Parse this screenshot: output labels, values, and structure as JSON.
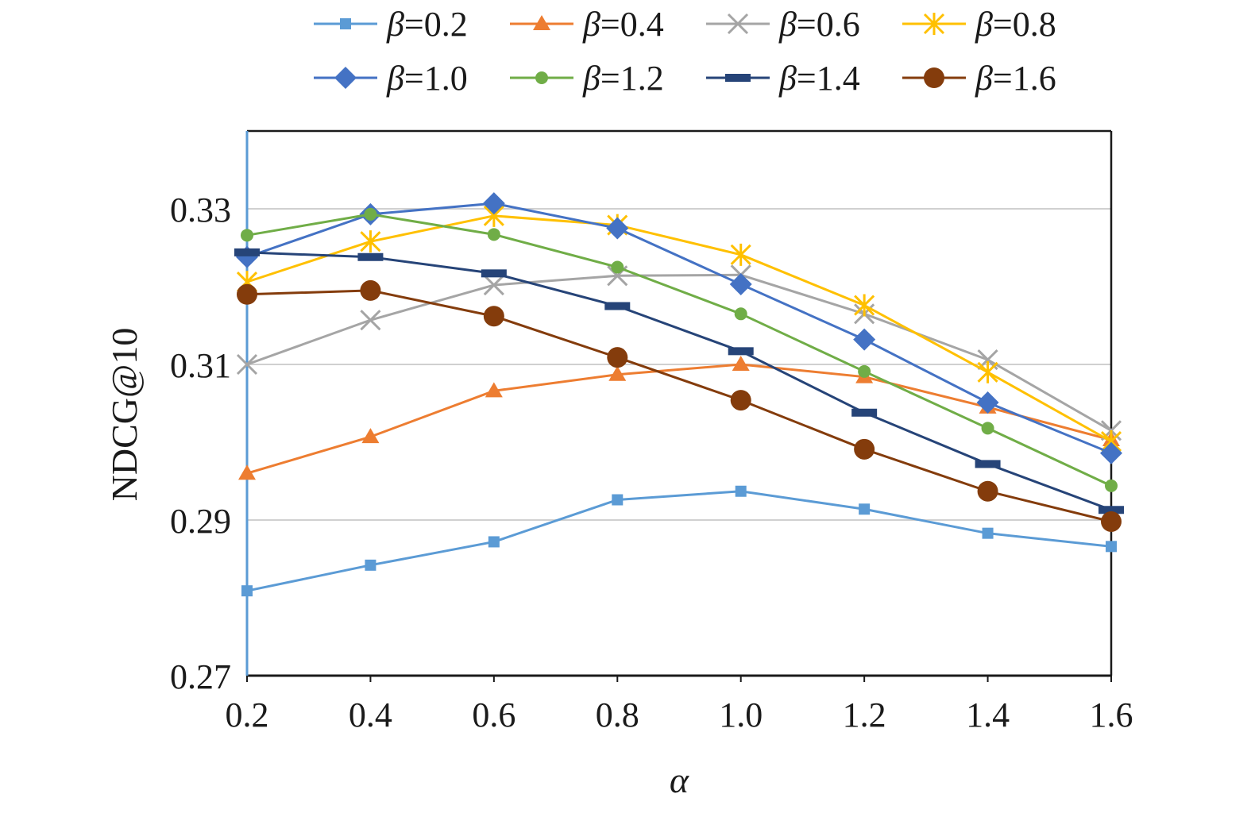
{
  "chart_data": {
    "type": "line",
    "title": "",
    "xlabel": "α",
    "ylabel": "NDCG@10",
    "x": [
      0.2,
      0.4,
      0.6,
      0.8,
      1.0,
      1.2,
      1.4,
      1.6
    ],
    "x_tick_labels": [
      "0.2",
      "0.4",
      "0.6",
      "0.8",
      "1.0",
      "1.2",
      "1.4",
      "1.6"
    ],
    "ylim": [
      0.27,
      0.34
    ],
    "y_ticks": [
      0.27,
      0.29,
      0.31,
      0.33
    ],
    "y_tick_labels": [
      "0.27",
      "0.29",
      "0.31",
      "0.33"
    ],
    "grid": "horizontal",
    "legend_position": "top",
    "series": [
      {
        "name": "β=0.2",
        "symbol": "β",
        "value_label": "=0.2",
        "color": "#5b9bd5",
        "marker": "square",
        "values": [
          0.2809,
          0.2842,
          0.2872,
          0.2926,
          0.2937,
          0.2914,
          0.2883,
          0.2866
        ]
      },
      {
        "name": "β=0.4",
        "symbol": "β",
        "value_label": "=0.4",
        "color": "#ed7d31",
        "marker": "triangle",
        "values": [
          0.296,
          0.3007,
          0.3066,
          0.3087,
          0.31,
          0.3084,
          0.3045,
          0.3003
        ]
      },
      {
        "name": "β=0.6",
        "symbol": "β",
        "value_label": "=0.6",
        "color": "#a5a5a5",
        "marker": "x",
        "values": [
          0.31,
          0.3157,
          0.3202,
          0.3214,
          0.3215,
          0.3165,
          0.3106,
          0.3015
        ]
      },
      {
        "name": "β=0.8",
        "symbol": "β",
        "value_label": "=0.8",
        "color": "#ffc000",
        "marker": "star",
        "values": [
          0.3206,
          0.3258,
          0.3291,
          0.3279,
          0.3241,
          0.3176,
          0.309,
          0.3001
        ]
      },
      {
        "name": "β=1.0",
        "symbol": "β",
        "value_label": "=1.0",
        "color": "#4472c4",
        "marker": "diamond",
        "values": [
          0.3238,
          0.3293,
          0.3307,
          0.3275,
          0.3203,
          0.3132,
          0.3051,
          0.2986
        ]
      },
      {
        "name": "β=1.2",
        "symbol": "β",
        "value_label": "=1.2",
        "color": "#70ad47",
        "marker": "circle",
        "values": [
          0.3266,
          0.3293,
          0.3267,
          0.3225,
          0.3165,
          0.3091,
          0.3018,
          0.2944
        ]
      },
      {
        "name": "β=1.4",
        "symbol": "β",
        "value_label": "=1.4",
        "color": "#264478",
        "marker": "dash",
        "values": [
          0.3244,
          0.3238,
          0.3217,
          0.3175,
          0.3117,
          0.3038,
          0.2972,
          0.2913
        ]
      },
      {
        "name": "β=1.6",
        "symbol": "β",
        "value_label": "=1.6",
        "color": "#843c0c",
        "marker": "bigcircle",
        "values": [
          0.319,
          0.3195,
          0.3162,
          0.3109,
          0.3054,
          0.2991,
          0.2937,
          0.2898
        ]
      }
    ]
  }
}
